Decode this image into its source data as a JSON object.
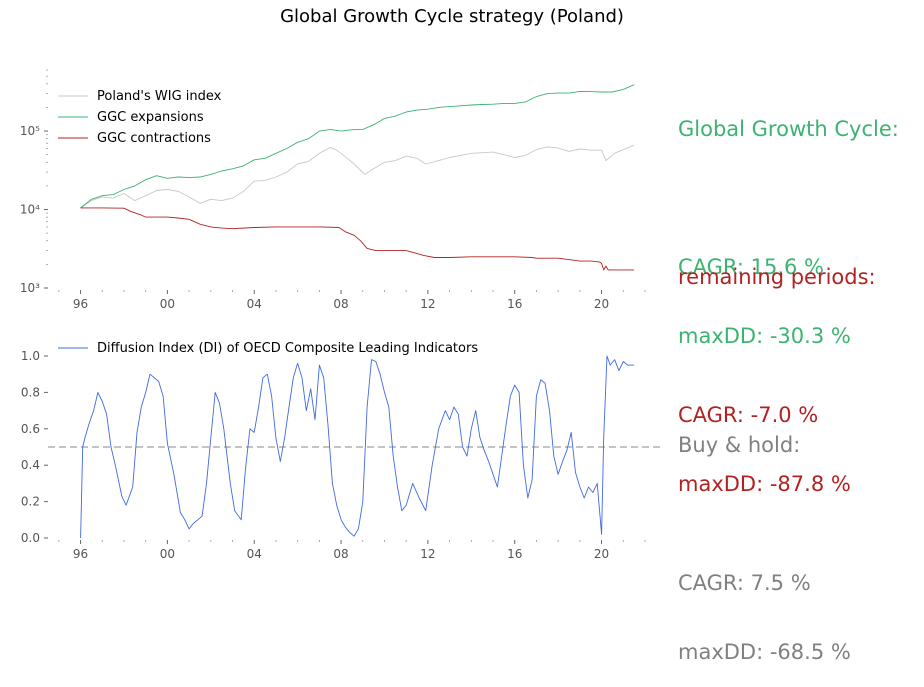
{
  "title": "Global Growth Cycle strategy (Poland)",
  "colors": {
    "wig": "#c8c8c8",
    "ggc_expansions": "#3cb371",
    "ggc_contractions": "#b22222",
    "di": "#4169e1",
    "threshold": "#b0b0b0",
    "buy_hold": "#808080"
  },
  "stats": {
    "ggc": {
      "heading": "Global Growth Cycle:",
      "cagr": "CAGR: 15.6 %",
      "maxdd": "maxDD: -30.3 %"
    },
    "remaining": {
      "heading": "remaining periods:",
      "cagr": "CAGR: -7.0 %",
      "maxdd": "maxDD: -87.8 %"
    },
    "buy_hold": {
      "heading": "Buy & hold:",
      "cagr": "CAGR: 7.5 %",
      "maxdd": "maxDD: -68.5 %"
    }
  },
  "chart_data": [
    {
      "type": "line",
      "yscale": "log",
      "ylim": [
        1000,
        600000
      ],
      "xlim": [
        1994.5,
        2022.6
      ],
      "x_ticks": [
        1996,
        2000,
        2004,
        2008,
        2012,
        2016,
        2020
      ],
      "x_tick_labels": [
        "96",
        "00",
        "04",
        "08",
        "12",
        "16",
        "20"
      ],
      "y_ticks": [
        1000,
        10000,
        100000
      ],
      "y_tick_labels": [
        "10³",
        "10⁴",
        "10⁵"
      ],
      "legend": "top-left",
      "series": [
        {
          "name": "Poland's WIG index",
          "x": [
            1996.0,
            1996.5,
            1997.0,
            1997.5,
            1998.0,
            1998.5,
            1999.0,
            1999.5,
            2000.0,
            2000.5,
            2001.0,
            2001.5,
            2002.0,
            2002.5,
            2003.0,
            2003.5,
            2004.0,
            2004.5,
            2005.0,
            2005.5,
            2006.0,
            2006.5,
            2007.0,
            2007.5,
            2007.8,
            2008.2,
            2008.6,
            2009.1,
            2009.5,
            2010.0,
            2010.5,
            2011.0,
            2011.5,
            2011.9,
            2012.5,
            2013.0,
            2013.5,
            2014.0,
            2014.5,
            2015.0,
            2015.5,
            2016.0,
            2016.5,
            2017.0,
            2017.5,
            2018.0,
            2018.5,
            2019.0,
            2019.5,
            2020.0,
            2020.2,
            2020.6,
            2021.0,
            2021.5
          ],
          "values": [
            10500,
            13000,
            14500,
            14000,
            16000,
            13000,
            15000,
            17500,
            18000,
            17000,
            14500,
            12000,
            13500,
            13000,
            14000,
            17000,
            23000,
            23500,
            26000,
            30000,
            38000,
            41000,
            52000,
            62000,
            57000,
            47000,
            38000,
            28000,
            33000,
            40000,
            42000,
            48000,
            45000,
            38000,
            42000,
            46000,
            49000,
            52000,
            53000,
            54000,
            50000,
            46000,
            49000,
            58000,
            63000,
            61000,
            55000,
            59000,
            57000,
            57000,
            42000,
            52000,
            58000,
            66000
          ]
        },
        {
          "name": "GGC expansions",
          "x": [
            1996.0,
            1996.5,
            1997.0,
            1997.5,
            1998.0,
            1998.5,
            1999.0,
            1999.5,
            2000.0,
            2000.5,
            2001.0,
            2001.5,
            2002.0,
            2002.5,
            2003.0,
            2003.5,
            2004.0,
            2004.5,
            2005.0,
            2005.5,
            2006.0,
            2006.5,
            2007.0,
            2007.5,
            2008.0,
            2008.5,
            2009.0,
            2009.5,
            2010.0,
            2010.5,
            2011.0,
            2011.5,
            2012.0,
            2012.5,
            2013.0,
            2013.5,
            2014.0,
            2014.5,
            2015.0,
            2015.5,
            2016.0,
            2016.5,
            2017.0,
            2017.5,
            2018.0,
            2018.5,
            2019.0,
            2019.5,
            2020.0,
            2020.5,
            2021.0,
            2021.5
          ],
          "values": [
            10500,
            13500,
            15000,
            15500,
            18000,
            20000,
            24000,
            27000,
            25000,
            26000,
            25500,
            26000,
            28000,
            31000,
            33000,
            36000,
            43000,
            45000,
            52000,
            60000,
            72000,
            80000,
            100000,
            105000,
            100000,
            104000,
            105000,
            120000,
            145000,
            155000,
            175000,
            185000,
            190000,
            200000,
            205000,
            210000,
            215000,
            218000,
            220000,
            225000,
            225000,
            235000,
            275000,
            300000,
            305000,
            305000,
            320000,
            318000,
            315000,
            315000,
            340000,
            390000
          ]
        },
        {
          "name": "GGC contractions",
          "x": [
            1996.0,
            1997.0,
            1998.0,
            1998.3,
            1998.8,
            1999.0,
            2000.0,
            2000.5,
            2001.0,
            2001.5,
            2002.0,
            2002.5,
            2003.0,
            2004.0,
            2005.0,
            2006.0,
            2007.0,
            2007.9,
            2008.2,
            2008.6,
            2008.9,
            2009.2,
            2009.6,
            2010.0,
            2011.0,
            2011.4,
            2011.8,
            2012.3,
            2013.0,
            2014.0,
            2015.0,
            2016.0,
            2016.8,
            2017.0,
            2018.0,
            2018.5,
            2019.0,
            2019.5,
            2019.9,
            2020.0,
            2020.1,
            2020.2,
            2020.3,
            2021.0,
            2021.5
          ],
          "values": [
            10500,
            10500,
            10400,
            9500,
            8500,
            8000,
            8000,
            7800,
            7500,
            6500,
            6000,
            5800,
            5700,
            5900,
            6000,
            6000,
            6000,
            5900,
            5200,
            4700,
            4000,
            3200,
            3000,
            3000,
            3000,
            2800,
            2600,
            2450,
            2450,
            2500,
            2500,
            2500,
            2450,
            2400,
            2400,
            2300,
            2200,
            2200,
            2150,
            2050,
            1700,
            1900,
            1700,
            1700,
            1700
          ]
        }
      ]
    },
    {
      "type": "line",
      "ylim": [
        0,
        1.0
      ],
      "xlim": [
        1994.5,
        2022.6
      ],
      "x_ticks": [
        1996,
        2000,
        2004,
        2008,
        2012,
        2016,
        2020
      ],
      "x_tick_labels": [
        "96",
        "00",
        "04",
        "08",
        "12",
        "16",
        "20"
      ],
      "y_ticks": [
        0.0,
        0.2,
        0.4,
        0.6,
        0.8,
        1.0
      ],
      "y_tick_labels": [
        "0.0",
        "0.2",
        "0.4",
        "0.6",
        "0.8",
        "1.0"
      ],
      "threshold": 0.5,
      "legend": "top-left",
      "series": [
        {
          "name": "Diffusion Index (DI) of OECD Composite Leading Indicators",
          "x": [
            1996.0,
            1996.1,
            1996.2,
            1996.4,
            1996.6,
            1996.8,
            1997.0,
            1997.2,
            1997.4,
            1997.6,
            1997.9,
            1998.1,
            1998.4,
            1998.6,
            1998.8,
            1999.0,
            1999.2,
            1999.4,
            1999.6,
            1999.8,
            2000.0,
            2000.3,
            2000.6,
            2000.8,
            2001.0,
            2001.2,
            2001.4,
            2001.6,
            2001.8,
            2002.0,
            2002.2,
            2002.4,
            2002.6,
            2002.9,
            2003.1,
            2003.4,
            2003.6,
            2003.8,
            2004.0,
            2004.2,
            2004.4,
            2004.6,
            2004.8,
            2005.0,
            2005.2,
            2005.4,
            2005.6,
            2005.8,
            2006.0,
            2006.2,
            2006.4,
            2006.6,
            2006.8,
            2007.0,
            2007.2,
            2007.4,
            2007.6,
            2007.8,
            2008.0,
            2008.2,
            2008.4,
            2008.6,
            2008.8,
            2009.0,
            2009.2,
            2009.4,
            2009.6,
            2009.8,
            2010.0,
            2010.2,
            2010.4,
            2010.6,
            2010.8,
            2011.0,
            2011.3,
            2011.6,
            2011.9,
            2012.2,
            2012.5,
            2012.8,
            2013.0,
            2013.2,
            2013.4,
            2013.6,
            2013.8,
            2014.0,
            2014.2,
            2014.4,
            2014.6,
            2014.8,
            2015.0,
            2015.2,
            2015.4,
            2015.6,
            2015.8,
            2016.0,
            2016.2,
            2016.4,
            2016.6,
            2016.8,
            2017.0,
            2017.2,
            2017.4,
            2017.6,
            2017.8,
            2018.0,
            2018.2,
            2018.4,
            2018.6,
            2018.8,
            2019.0,
            2019.2,
            2019.4,
            2019.6,
            2019.8,
            2020.0,
            2020.1,
            2020.25,
            2020.4,
            2020.6,
            2020.8,
            2021.0,
            2021.2,
            2021.5
          ],
          "values": [
            0.0,
            0.5,
            0.55,
            0.63,
            0.7,
            0.8,
            0.75,
            0.68,
            0.5,
            0.4,
            0.23,
            0.18,
            0.28,
            0.58,
            0.72,
            0.8,
            0.9,
            0.88,
            0.86,
            0.78,
            0.52,
            0.35,
            0.14,
            0.1,
            0.05,
            0.08,
            0.1,
            0.12,
            0.3,
            0.55,
            0.8,
            0.74,
            0.6,
            0.3,
            0.15,
            0.1,
            0.38,
            0.6,
            0.58,
            0.72,
            0.88,
            0.9,
            0.78,
            0.55,
            0.42,
            0.55,
            0.72,
            0.88,
            0.96,
            0.88,
            0.7,
            0.82,
            0.65,
            0.95,
            0.88,
            0.62,
            0.3,
            0.18,
            0.1,
            0.06,
            0.03,
            0.01,
            0.05,
            0.2,
            0.72,
            0.98,
            0.97,
            0.9,
            0.8,
            0.72,
            0.45,
            0.28,
            0.15,
            0.18,
            0.3,
            0.22,
            0.15,
            0.4,
            0.6,
            0.7,
            0.65,
            0.72,
            0.68,
            0.5,
            0.45,
            0.6,
            0.7,
            0.55,
            0.48,
            0.42,
            0.35,
            0.28,
            0.45,
            0.62,
            0.78,
            0.84,
            0.8,
            0.4,
            0.22,
            0.32,
            0.78,
            0.87,
            0.85,
            0.7,
            0.45,
            0.35,
            0.42,
            0.48,
            0.58,
            0.36,
            0.28,
            0.22,
            0.28,
            0.25,
            0.3,
            0.02,
            0.55,
            1.0,
            0.95,
            0.98,
            0.92,
            0.97,
            0.95,
            0.95
          ]
        }
      ]
    }
  ]
}
